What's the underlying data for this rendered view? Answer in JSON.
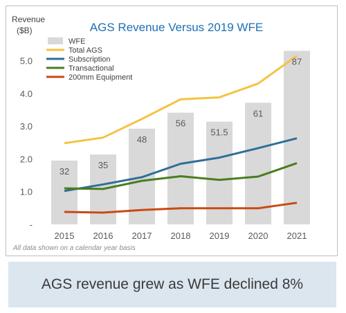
{
  "chart_data": {
    "type": "bar",
    "title": "AGS Revenue Versus 2019 WFE",
    "ylabel_line1": "Revenue",
    "ylabel_line2": "($B)",
    "categories": [
      "2015",
      "2016",
      "2017",
      "2018",
      "2019",
      "2020",
      "2021"
    ],
    "ylim": [
      0,
      5.5
    ],
    "yticks": [
      "-",
      "1.0",
      "2.0",
      "3.0",
      "4.0",
      "5.0"
    ],
    "ytick_values": [
      0,
      1,
      2,
      3,
      4,
      5
    ],
    "bar_series": {
      "name": "WFE",
      "color": "#d9d9d9",
      "labels": [
        "32",
        "35",
        "48",
        "56",
        "51.5",
        "61",
        "87"
      ],
      "values": [
        32,
        35,
        48,
        56,
        51.5,
        61,
        87
      ],
      "scale_max": 87,
      "scale_to_y": 5.3
    },
    "series": [
      {
        "name": "Total AGS",
        "color": "#f5c242",
        "values": [
          2.48,
          2.65,
          3.22,
          3.82,
          3.88,
          4.3,
          5.15
        ]
      },
      {
        "name": "Subscription",
        "color": "#2e6e97",
        "values": [
          1.02,
          1.22,
          1.44,
          1.85,
          2.04,
          2.33,
          2.63
        ]
      },
      {
        "name": "Transactional",
        "color": "#4a7d1f",
        "values": [
          1.1,
          1.08,
          1.33,
          1.47,
          1.36,
          1.46,
          1.87
        ]
      },
      {
        "name": "200mm Equipment",
        "color": "#c84a14",
        "values": [
          0.38,
          0.36,
          0.44,
          0.49,
          0.49,
          0.49,
          0.66
        ]
      }
    ],
    "legend_position": "top-left",
    "grid": false,
    "footnote": "All data shown on a calendar year basis"
  },
  "banner": {
    "text": "AGS revenue grew as WFE declined 8%",
    "color": "#dbe6ef"
  }
}
